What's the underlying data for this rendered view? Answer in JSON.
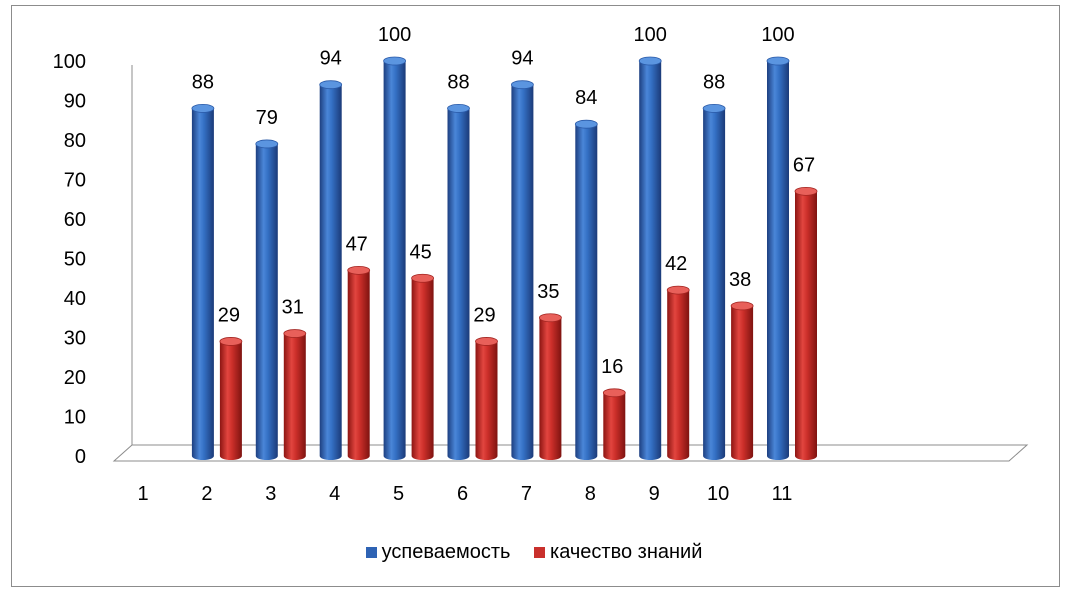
{
  "chart_data": {
    "type": "bar",
    "title": "",
    "xlabel": "",
    "ylabel": "",
    "categories": [
      "1",
      "2",
      "3",
      "4",
      "5",
      "6",
      "7",
      "8",
      "9",
      "10",
      "11"
    ],
    "series": [
      {
        "name": "успеваемость",
        "color": "#2e63b4",
        "values": [
          null,
          88,
          79,
          94,
          100,
          88,
          94,
          84,
          100,
          88,
          100
        ]
      },
      {
        "name": "качество знаний",
        "color": "#c9302c",
        "values": [
          null,
          29,
          31,
          47,
          45,
          29,
          35,
          16,
          42,
          38,
          67
        ]
      }
    ],
    "ylim": [
      0,
      100
    ],
    "yticks": [
      "0",
      "10",
      "20",
      "30",
      "40",
      "50",
      "60",
      "70",
      "80",
      "90",
      "100"
    ],
    "grid": false,
    "legend_position": "bottom",
    "data_labels": true,
    "style": "3d-cylinder"
  }
}
